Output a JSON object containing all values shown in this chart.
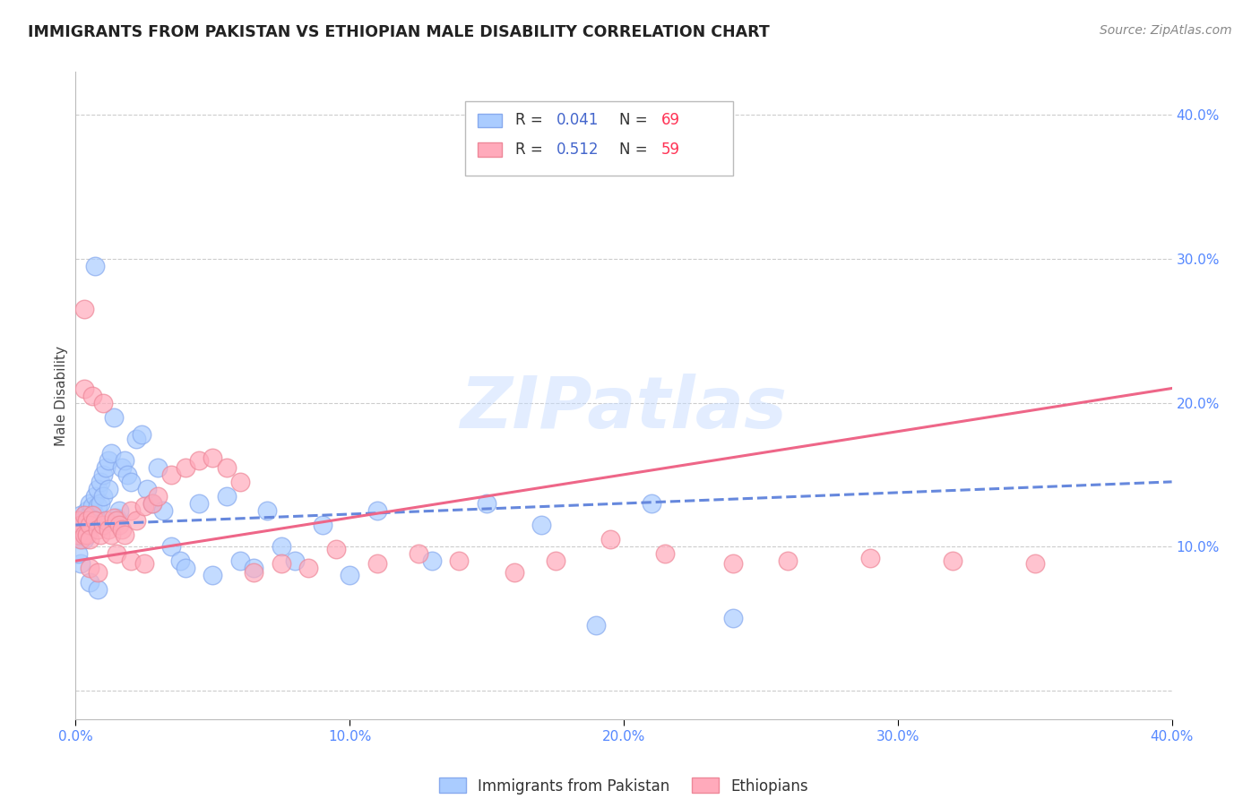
{
  "title": "IMMIGRANTS FROM PAKISTAN VS ETHIOPIAN MALE DISABILITY CORRELATION CHART",
  "source": "Source: ZipAtlas.com",
  "ylabel": "Male Disability",
  "xlim": [
    0.0,
    0.4
  ],
  "ylim": [
    -0.02,
    0.43
  ],
  "yticks": [
    0.0,
    0.1,
    0.2,
    0.3,
    0.4
  ],
  "xticks": [
    0.0,
    0.1,
    0.2,
    0.3,
    0.4
  ],
  "xtick_labels": [
    "0.0%",
    "10.0%",
    "20.0%",
    "30.0%",
    "40.0%"
  ],
  "ytick_labels": [
    "",
    "10.0%",
    "20.0%",
    "30.0%",
    "40.0%"
  ],
  "pakistan_color": "#aaccff",
  "pakistan_edge_color": "#88aaee",
  "pakistan_line_color": "#6688dd",
  "ethiopian_color": "#ffaabb",
  "ethiopian_edge_color": "#ee8899",
  "ethiopian_line_color": "#ee6688",
  "pakistan_R": 0.041,
  "pakistan_N": 69,
  "ethiopian_R": 0.512,
  "ethiopian_N": 59,
  "pak_x": [
    0.001,
    0.001,
    0.001,
    0.002,
    0.002,
    0.002,
    0.002,
    0.003,
    0.003,
    0.003,
    0.004,
    0.004,
    0.004,
    0.005,
    0.005,
    0.005,
    0.006,
    0.006,
    0.007,
    0.007,
    0.008,
    0.008,
    0.009,
    0.009,
    0.01,
    0.01,
    0.011,
    0.012,
    0.012,
    0.013,
    0.014,
    0.015,
    0.016,
    0.017,
    0.018,
    0.019,
    0.02,
    0.022,
    0.024,
    0.026,
    0.028,
    0.03,
    0.032,
    0.035,
    0.038,
    0.04,
    0.045,
    0.05,
    0.055,
    0.06,
    0.065,
    0.07,
    0.075,
    0.08,
    0.09,
    0.1,
    0.11,
    0.13,
    0.15,
    0.17,
    0.19,
    0.21,
    0.24,
    0.007,
    0.003,
    0.005,
    0.002,
    0.001,
    0.008
  ],
  "pak_y": [
    0.118,
    0.112,
    0.108,
    0.122,
    0.115,
    0.109,
    0.105,
    0.12,
    0.114,
    0.11,
    0.125,
    0.118,
    0.108,
    0.13,
    0.122,
    0.115,
    0.128,
    0.118,
    0.135,
    0.122,
    0.14,
    0.128,
    0.145,
    0.13,
    0.15,
    0.135,
    0.155,
    0.16,
    0.14,
    0.165,
    0.19,
    0.12,
    0.125,
    0.155,
    0.16,
    0.15,
    0.145,
    0.175,
    0.178,
    0.14,
    0.13,
    0.155,
    0.125,
    0.1,
    0.09,
    0.085,
    0.13,
    0.08,
    0.135,
    0.09,
    0.085,
    0.125,
    0.1,
    0.09,
    0.115,
    0.08,
    0.125,
    0.09,
    0.13,
    0.115,
    0.045,
    0.13,
    0.05,
    0.295,
    0.105,
    0.075,
    0.088,
    0.095,
    0.07
  ],
  "eth_x": [
    0.001,
    0.001,
    0.002,
    0.002,
    0.003,
    0.003,
    0.004,
    0.004,
    0.005,
    0.005,
    0.006,
    0.007,
    0.008,
    0.009,
    0.01,
    0.011,
    0.012,
    0.013,
    0.014,
    0.015,
    0.016,
    0.017,
    0.018,
    0.02,
    0.022,
    0.025,
    0.028,
    0.03,
    0.035,
    0.04,
    0.045,
    0.05,
    0.055,
    0.06,
    0.065,
    0.075,
    0.085,
    0.095,
    0.11,
    0.125,
    0.14,
    0.16,
    0.175,
    0.195,
    0.215,
    0.24,
    0.26,
    0.29,
    0.32,
    0.35,
    0.003,
    0.006,
    0.01,
    0.015,
    0.02,
    0.025,
    0.003,
    0.005,
    0.008
  ],
  "eth_y": [
    0.118,
    0.108,
    0.115,
    0.105,
    0.122,
    0.108,
    0.118,
    0.108,
    0.115,
    0.105,
    0.122,
    0.118,
    0.112,
    0.108,
    0.115,
    0.118,
    0.112,
    0.108,
    0.12,
    0.118,
    0.115,
    0.112,
    0.108,
    0.125,
    0.118,
    0.128,
    0.13,
    0.135,
    0.15,
    0.155,
    0.16,
    0.162,
    0.155,
    0.145,
    0.082,
    0.088,
    0.085,
    0.098,
    0.088,
    0.095,
    0.09,
    0.082,
    0.09,
    0.105,
    0.095,
    0.088,
    0.09,
    0.092,
    0.09,
    0.088,
    0.21,
    0.205,
    0.2,
    0.095,
    0.09,
    0.088,
    0.265,
    0.085,
    0.082
  ],
  "background_color": "#ffffff",
  "grid_color": "#cccccc",
  "tick_label_color": "#5588ff",
  "title_color": "#222222",
  "source_color": "#888888",
  "legend_R_color": "#4466cc",
  "legend_N_color": "#ff3355",
  "watermark_color": "#c8ddff",
  "watermark_alpha": 0.5
}
